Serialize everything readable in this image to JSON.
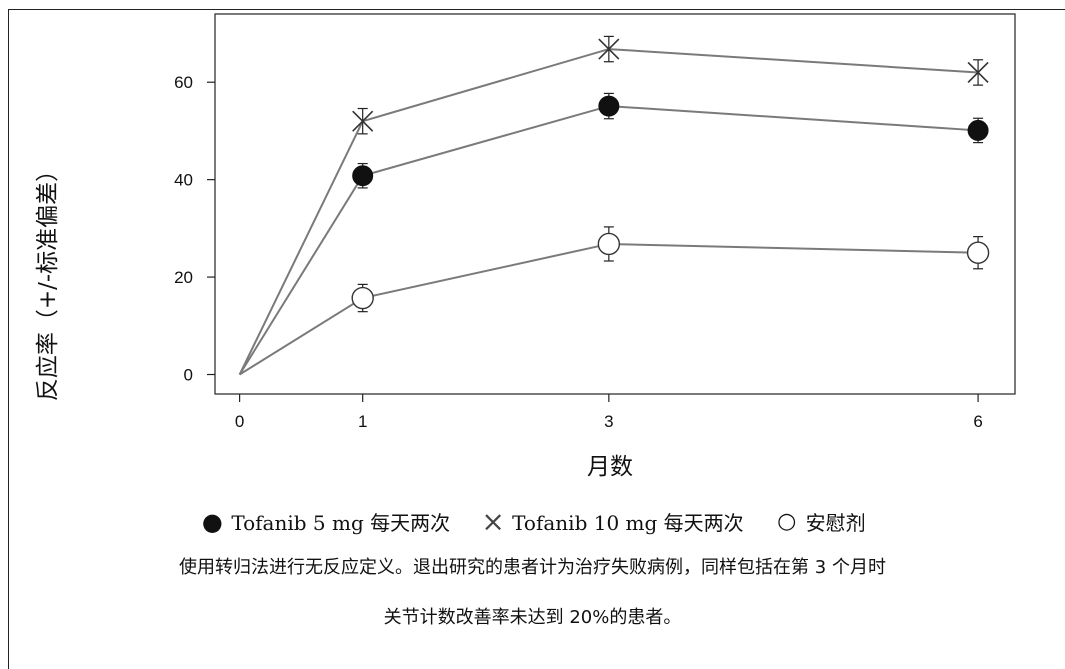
{
  "chart_data": {
    "type": "line",
    "x": [
      0,
      1,
      3,
      6
    ],
    "x_ticks": [
      "0",
      "1",
      "3",
      "6"
    ],
    "y_ticks": [
      "0",
      "20",
      "40",
      "60"
    ],
    "xlabel": "月数",
    "ylabel": "反应率（+/-标准偏差）",
    "ylim": [
      -4,
      74
    ],
    "grid": false,
    "legend_position": "bottom",
    "series": [
      {
        "name": "Tofanib  5 mg 每天两次",
        "marker": "filled-circle",
        "values": [
          0,
          40.8,
          55.1,
          50.1
        ],
        "err": [
          null,
          2.5,
          2.6,
          2.5
        ]
      },
      {
        "name": "Tofanib  10 mg 每天两次",
        "marker": "x",
        "values": [
          0,
          52.0,
          66.8,
          62.0
        ],
        "err": [
          null,
          2.6,
          2.6,
          2.6
        ]
      },
      {
        "name": "安慰剂",
        "marker": "open-circle",
        "values": [
          0,
          15.7,
          26.8,
          25.0
        ],
        "err": [
          null,
          2.8,
          3.5,
          3.3
        ]
      }
    ],
    "colors": {
      "line": "#7a7a7a",
      "marker": "#111111"
    }
  },
  "legend": {
    "items": [
      {
        "symbol": "●",
        "label": "Tofanib  5 mg 每天两次"
      },
      {
        "symbol": "×",
        "label": "Tofanib  10 mg 每天两次"
      },
      {
        "symbol": "○",
        "label": "安慰剂"
      }
    ]
  },
  "footnote": {
    "line1": "使用转归法进行无反应定义。退出研究的患者计为治疗失败病例，同样包括在第  3 个月时",
    "line2": "关节计数改善率未达到     20%的患者。"
  }
}
